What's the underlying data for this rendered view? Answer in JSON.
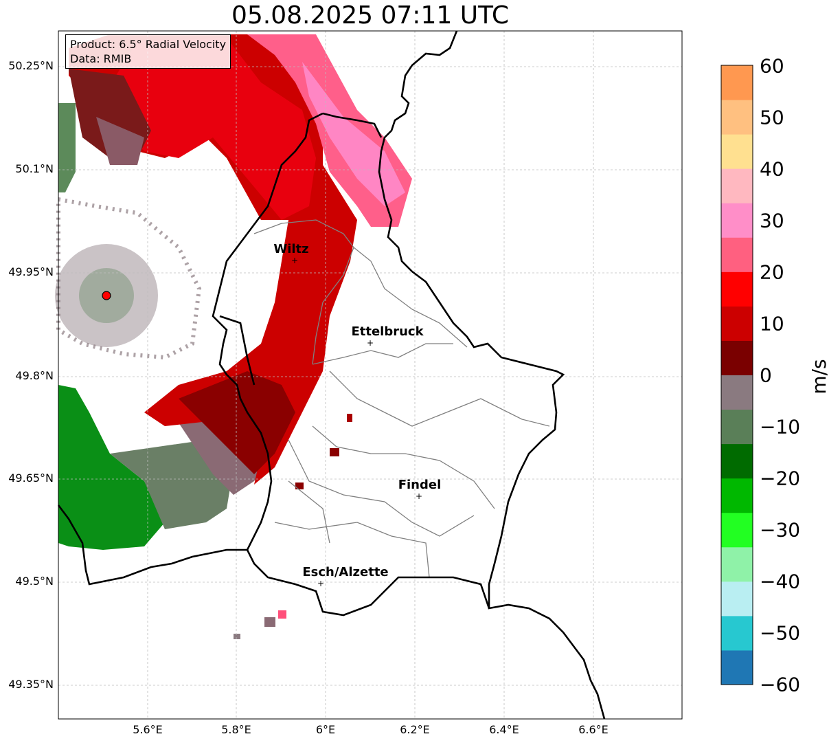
{
  "title": "05.08.2025 07:11 UTC",
  "info": {
    "product": "Product: 6.5° Radial Velocity",
    "source": "Data: RMIB"
  },
  "lat_ticks": [
    "50.25°N",
    "50.1°N",
    "49.95°N",
    "49.8°N",
    "49.65°N",
    "49.5°N",
    "49.35°N"
  ],
  "lon_ticks": [
    "5.6°E",
    "5.8°E",
    "6°E",
    "6.2°E",
    "6.4°E",
    "6.6°E"
  ],
  "cities": [
    {
      "name": "Wiltz"
    },
    {
      "name": "Ettelbruck"
    },
    {
      "name": "Findel"
    },
    {
      "name": "Esch/Alzette"
    }
  ],
  "colorbar": {
    "label": "m/s",
    "ticks": [
      "60",
      "50",
      "40",
      "30",
      "20",
      "10",
      "0",
      "−10",
      "−20",
      "−30",
      "−40",
      "−50",
      "−60"
    ],
    "range": [
      -60,
      60
    ],
    "colors": [
      "#1f77b4",
      "#27c8d0",
      "#b9eef2",
      "#8ff2a8",
      "#22ff22",
      "#00b800",
      "#006b00",
      "#5a7f58",
      "#8a7a80",
      "#7a0000",
      "#cc0000",
      "#ff0000",
      "#ff6080",
      "#ff8ec8",
      "#ffb8c0",
      "#ffe090",
      "#ffc080",
      "#ff9850"
    ]
  },
  "radar_marker_color": "#ff0000"
}
